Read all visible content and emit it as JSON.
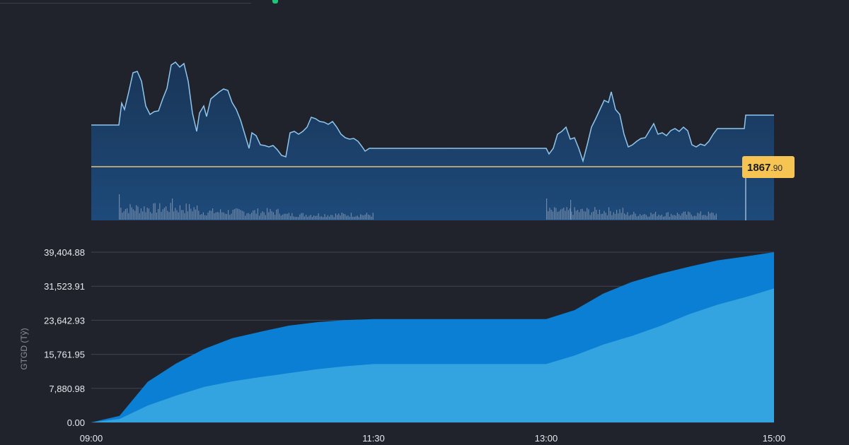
{
  "header_accent_color": "#19c97a",
  "price_panel": {
    "reference_label_main": "1867",
    "reference_label_decimal": ".90",
    "line_color": "#8fc6ee",
    "area_color": "#1b4a7a",
    "reference_line_color": "#e8c37a",
    "badge_color": "#f6c453"
  },
  "chart_data": {
    "type": "area",
    "title": "",
    "xlabel": "",
    "ylabel": "GTGD (Tỷ)",
    "x_ticks": [
      "09:00",
      "11:30",
      "13:00",
      "15:00"
    ],
    "y_ticks": [
      "0.00",
      "7,880.98",
      "15,761.95",
      "23,642.93",
      "31,523.91",
      "39,404.88"
    ],
    "ylim": [
      0,
      39404.88
    ],
    "x": [
      "09:00",
      "09:15",
      "09:30",
      "09:45",
      "10:00",
      "10:15",
      "10:30",
      "10:45",
      "11:00",
      "11:15",
      "11:30",
      "13:00",
      "13:15",
      "13:30",
      "13:45",
      "14:00",
      "14:15",
      "14:30",
      "14:45",
      "15:00"
    ],
    "series": [
      {
        "color": "#33a4e0",
        "values": [
          0,
          800,
          3900,
          6200,
          8200,
          9500,
          10500,
          11400,
          12300,
          13000,
          13500,
          13500,
          15500,
          18000,
          20000,
          22300,
          25000,
          27200,
          29000,
          31000
        ]
      },
      {
        "color": "#0a7fd4",
        "values": [
          0,
          1500,
          9400,
          13600,
          17000,
          19500,
          21000,
          22400,
          23200,
          23700,
          23900,
          23900,
          26000,
          29800,
          32500,
          34400,
          36000,
          37500,
          38400,
          39404.88
        ]
      }
    ]
  }
}
